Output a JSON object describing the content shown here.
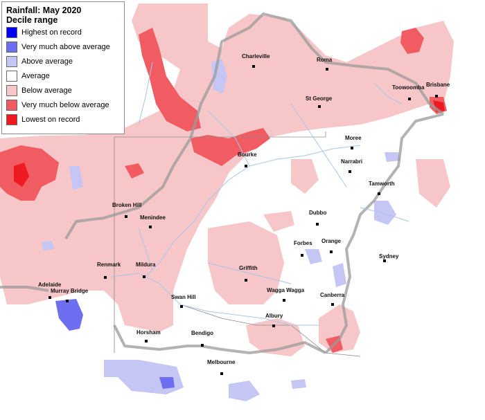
{
  "legend": {
    "title": "Rainfall: May 2020",
    "subtitle": "Decile range",
    "items": [
      {
        "label": "Highest on record",
        "color": "#0000ee"
      },
      {
        "label": "Very much above average",
        "color": "#6e6ef0"
      },
      {
        "label": "Above average",
        "color": "#c6c6f4"
      },
      {
        "label": "Average",
        "color": "#ffffff"
      },
      {
        "label": "Below average",
        "color": "#f7c6c9"
      },
      {
        "label": "Very much below average",
        "color": "#f05c62"
      },
      {
        "label": "Lowest on record",
        "color": "#ee1a22"
      }
    ]
  },
  "towns": {
    "charleville": "Charleville",
    "roma": "Roma",
    "st_george": "St George",
    "toowoomba": "Toowoomba",
    "brisbane": "Brisbane",
    "bourke": "Bourke",
    "moree": "Moree",
    "narrabri": "Narrabri",
    "tamworth": "Tamworth",
    "broken_hill": "Broken Hill",
    "menindee": "Menindee",
    "dubbo": "Dubbo",
    "forbes": "Forbes",
    "orange": "Orange",
    "sydney": "Sydney",
    "renmark": "Renmark",
    "mildura": "Mildura",
    "griffith": "Griffith",
    "adelaide": "Adelaide",
    "murray_bridge": "Murray Bridge",
    "wagga_wagga": "Wagga Wagga",
    "swan_hill": "Swan Hill",
    "canberra": "Canberra",
    "albury": "Albury",
    "horsham": "Horsham",
    "bendigo": "Bendigo",
    "melbourne": "Melbourne"
  }
}
